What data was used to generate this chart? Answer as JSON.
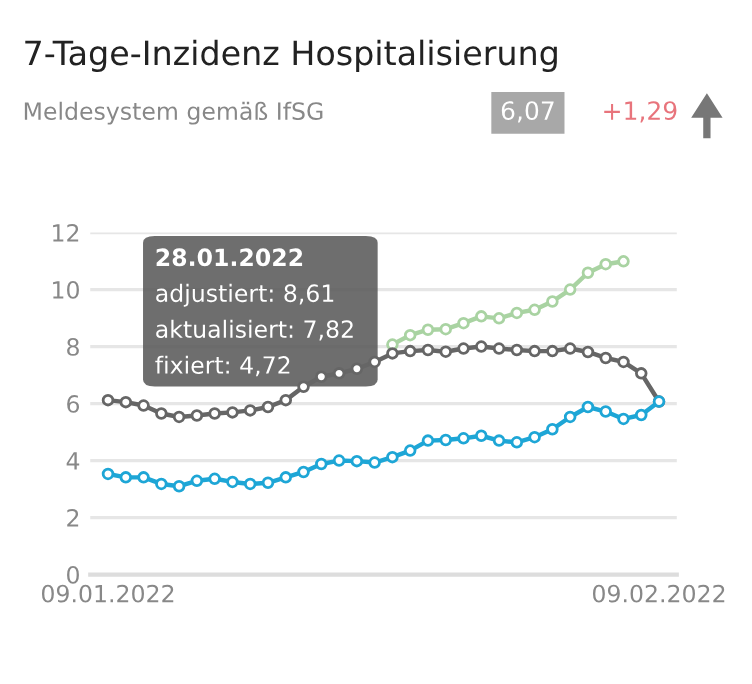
{
  "chart_data": {
    "type": "line",
    "title": "7-Tage-Inzidenz Hospitalisierung",
    "subtitle": "Meldesystem gemäß IfSG",
    "annotations": [
      "6,07",
      "+1,29",
      "28.01.2022",
      "adjustiert: 8,61",
      "aktualisiert: 7,82",
      "fixiert: 4,72"
    ],
    "x": [
      "2022-01-09",
      "2022-01-10",
      "2022-01-11",
      "2022-01-12",
      "2022-01-13",
      "2022-01-14",
      "2022-01-15",
      "2022-01-16",
      "2022-01-17",
      "2022-01-18",
      "2022-01-19",
      "2022-01-20",
      "2022-01-21",
      "2022-01-22",
      "2022-01-23",
      "2022-01-24",
      "2022-01-25",
      "2022-01-26",
      "2022-01-27",
      "2022-01-28",
      "2022-01-29",
      "2022-01-30",
      "2022-01-31",
      "2022-02-01",
      "2022-02-02",
      "2022-02-03",
      "2022-02-04",
      "2022-02-05",
      "2022-02-06",
      "2022-02-07",
      "2022-02-08",
      "2022-02-09"
    ],
    "series": [
      {
        "color": "#a9d3a2",
        "values": [
          null,
          null,
          null,
          null,
          null,
          null,
          null,
          null,
          null,
          null,
          null,
          null,
          null,
          null,
          null,
          null,
          8.07,
          8.4,
          8.59,
          8.61,
          8.82,
          9.06,
          8.99,
          9.18,
          9.29,
          9.58,
          10.0,
          10.59,
          10.89,
          10.99,
          null,
          null
        ]
      },
      {
        "color": "#666666",
        "values": [
          6.12,
          6.05,
          5.93,
          5.65,
          5.53,
          5.58,
          5.65,
          5.69,
          5.76,
          5.88,
          6.12,
          6.59,
          6.94,
          7.06,
          7.22,
          7.46,
          7.76,
          7.84,
          7.88,
          7.82,
          7.93,
          8.0,
          7.93,
          7.88,
          7.84,
          7.84,
          7.93,
          7.81,
          7.6,
          7.46,
          7.06,
          6.07
        ]
      },
      {
        "color": "#1ea6d6",
        "values": [
          3.53,
          3.41,
          3.41,
          3.18,
          3.1,
          3.29,
          3.36,
          3.25,
          3.18,
          3.22,
          3.41,
          3.6,
          3.88,
          4.0,
          3.98,
          3.93,
          4.12,
          4.35,
          4.7,
          4.72,
          4.78,
          4.87,
          4.7,
          4.64,
          4.82,
          5.1,
          5.53,
          5.88,
          5.72,
          5.46,
          5.6,
          6.07
        ]
      }
    ],
    "xlim": [
      "2022-01-08",
      "2022-02-10"
    ],
    "xticks": [
      {
        "value": "2022-01-09",
        "label": "09.01.2022"
      },
      {
        "value": "2022-02-09",
        "label": "09.02.2022"
      }
    ],
    "ylim": [
      0,
      12
    ],
    "yticks": [
      0,
      2,
      4,
      6,
      8,
      10,
      12
    ],
    "grid": "y",
    "marker": "circle",
    "line_style": "solid",
    "legend": false
  }
}
